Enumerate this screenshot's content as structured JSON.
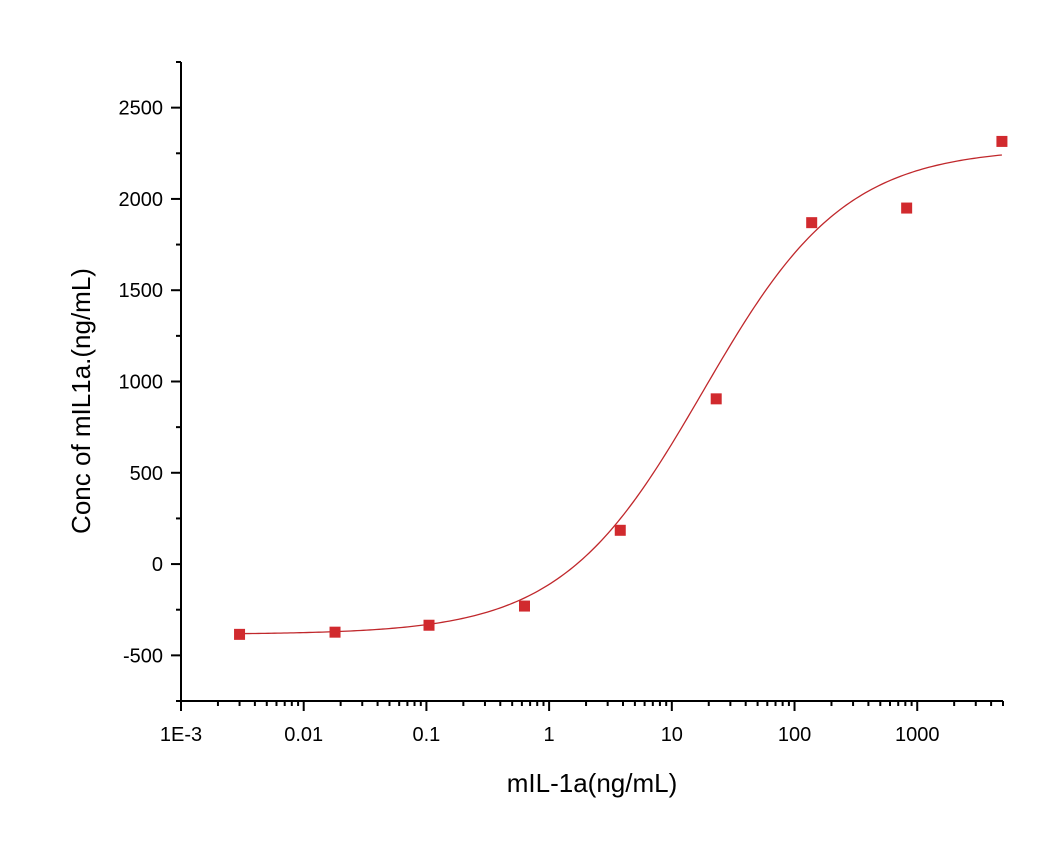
{
  "chart_data": {
    "type": "scatter",
    "title": "",
    "xlabel": "mIL-1a(ng/mL)",
    "ylabel": "Conc of mIL1a.(ng/mL)",
    "x_scale": "log",
    "xlim": [
      0.001,
      5000
    ],
    "ylim": [
      -750,
      2750
    ],
    "x_ticks": [
      0.001,
      0.01,
      0.1,
      1,
      10,
      100,
      1000
    ],
    "x_tick_labels": [
      "1E-3",
      "0.01",
      "0.1",
      "1",
      "10",
      "100",
      "1000"
    ],
    "y_ticks": [
      -500,
      0,
      500,
      1000,
      1500,
      2000,
      2500
    ],
    "y_tick_labels": [
      "-500",
      "0",
      "500",
      "1000",
      "1500",
      "2000",
      "2500"
    ],
    "grid": false,
    "legend": "none",
    "series": [
      {
        "marker": "square",
        "color": "#d12a2e",
        "x": [
          0.003,
          0.018,
          0.105,
          0.63,
          3.8,
          23,
          138,
          820,
          4900
        ],
        "y": [
          -385,
          -373,
          -335,
          -230,
          185,
          905,
          1870,
          1950,
          2315
        ]
      }
    ],
    "fit": {
      "model": "4PL",
      "color": "#c0282c",
      "bottom": -385,
      "top": 2280,
      "ec50": 18,
      "hill": 0.75
    }
  }
}
